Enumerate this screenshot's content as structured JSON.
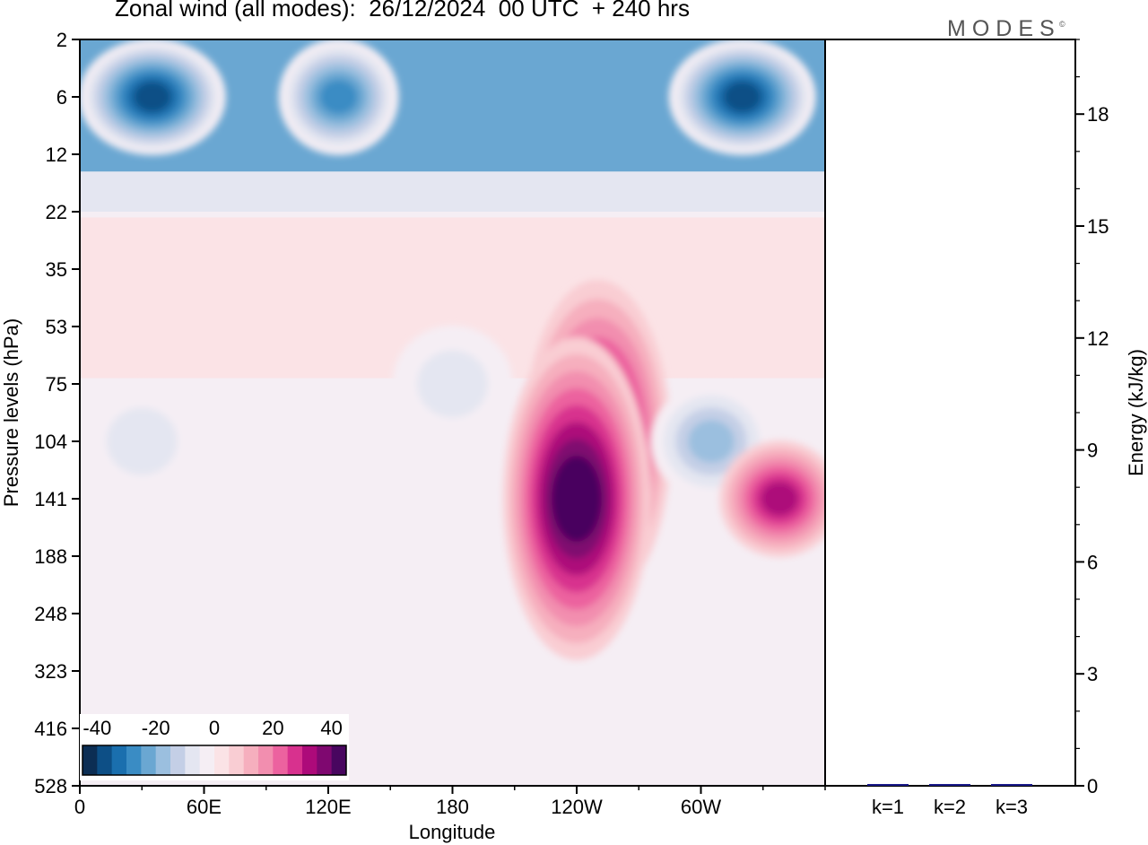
{
  "title": "Zonal wind (all modes):  26/12/2024  00 UTC  + 240 hrs",
  "brand": {
    "name": "MODES",
    "mark": "©"
  },
  "chart_data": [
    {
      "type": "heatmap",
      "title": "Zonal wind (all modes):  26/12/2024  00 UTC  + 240 hrs",
      "xlabel": "Longitude",
      "ylabel": "Pressure levels (hPa)",
      "x_ticks": [
        "0",
        "60E",
        "120E",
        "180",
        "120W",
        "60W"
      ],
      "x_tick_degrees": [
        0,
        60,
        120,
        180,
        240,
        300
      ],
      "xlim": [
        0,
        360
      ],
      "y_ticks": [
        "2",
        "6",
        "12",
        "22",
        "35",
        "53",
        "75",
        "104",
        "141",
        "188",
        "248",
        "323",
        "416",
        "528"
      ],
      "y_scale": "model levels",
      "colorbar": {
        "ticks": [
          "-40",
          "-20",
          "0",
          "20",
          "40"
        ],
        "range": [
          -45,
          45
        ],
        "colors": [
          "#0c2e54",
          "#0d4f86",
          "#1a6fae",
          "#3a8cc4",
          "#6aa7d2",
          "#9bbfdf",
          "#c4cfe6",
          "#e4e6f1",
          "#f5eef4",
          "#fbe3e6",
          "#f9cdd3",
          "#f6afbe",
          "#f28eaf",
          "#ec629f",
          "#d8318e",
          "#ad0a7a",
          "#7f0870",
          "#48065f"
        ],
        "orientation": "horizontal",
        "placement": "bottom-left"
      },
      "features": [
        {
          "lon": 35,
          "level": "6",
          "u": -40
        },
        {
          "lon": 125,
          "level": "6",
          "u": -30
        },
        {
          "lon": 320,
          "level": "6",
          "u": -38
        },
        {
          "lon": 250,
          "level": "104",
          "u": 42
        },
        {
          "lon": 240,
          "level": "141",
          "u": 45
        },
        {
          "lon": 305,
          "level": "104",
          "u": -20
        },
        {
          "lon": 338,
          "level": "141",
          "u": 30
        },
        {
          "lon": 180,
          "level": "75",
          "u": -8
        },
        {
          "lon": 30,
          "level": "104",
          "u": -8
        }
      ]
    },
    {
      "type": "bar",
      "categories": [
        "k=1",
        "k=2",
        "k=3"
      ],
      "values": [
        0.04,
        0.02,
        0.01
      ],
      "ylabel": "Energy (kJ/kg)",
      "ylim": [
        0,
        20
      ],
      "y_ticks": [
        0,
        3,
        6,
        9,
        12,
        15,
        18
      ],
      "color": "#1a1a8a",
      "axis_side": "right"
    }
  ]
}
